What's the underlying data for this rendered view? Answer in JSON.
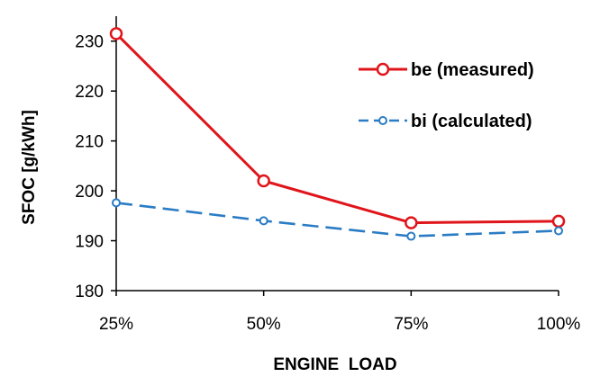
{
  "chart_data": {
    "type": "line",
    "title": "",
    "xlabel": "ENGINE  LOAD",
    "ylabel": "SFOC  [g/kWh]",
    "categories": [
      "25%",
      "50%",
      "75%",
      "100%"
    ],
    "ylim": [
      180,
      235
    ],
    "yticks": [
      180,
      190,
      200,
      210,
      220,
      230
    ],
    "grid": false,
    "legend": "upper-right",
    "series": [
      {
        "name": "be (measured)",
        "values": [
          231.5,
          202.0,
          193.6,
          193.9
        ],
        "color": "#e0151b",
        "line_style": "solid",
        "marker": "open-circle"
      },
      {
        "name": "bi (calculated)",
        "values": [
          197.6,
          194.0,
          190.9,
          192.0
        ],
        "color": "#2a7cc4",
        "line_style": "dashed",
        "marker": "open-circle"
      }
    ]
  }
}
